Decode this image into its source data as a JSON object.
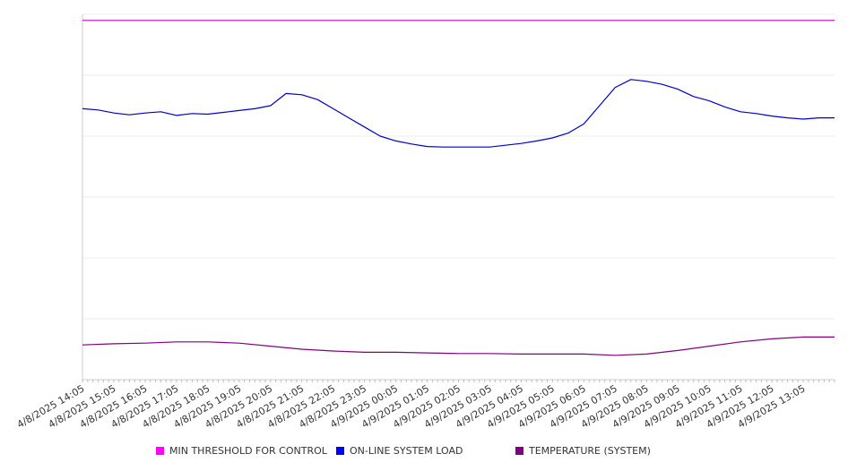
{
  "chart_data": {
    "type": "line",
    "title": "",
    "xlabel": "",
    "ylabel": "",
    "grid": true,
    "legend_position": "bottom",
    "x_categories": [
      "4/8/2025 14:05",
      "4/8/2025 15:05",
      "4/8/2025 16:05",
      "4/8/2025 17:05",
      "4/8/2025 18:05",
      "4/8/2025 19:05",
      "4/8/2025 20:05",
      "4/8/2025 21:05",
      "4/8/2025 22:05",
      "4/8/2025 23:05",
      "4/9/2025 00:05",
      "4/9/2025 01:05",
      "4/9/2025 02:05",
      "4/9/2025 03:05",
      "4/9/2025 04:05",
      "4/9/2025 05:05",
      "4/9/2025 06:05",
      "4/9/2025 07:05",
      "4/9/2025 08:05",
      "4/9/2025 09:05",
      "4/9/2025 10:05",
      "4/9/2025 11:05",
      "4/9/2025 12:05",
      "4/9/2025 13:05"
    ],
    "x_range": [
      0,
      24
    ],
    "y_range": [
      0,
      6
    ],
    "series": [
      {
        "name": "MIN THRESHOLD FOR CONTROL",
        "color": "#c000c0",
        "points": [
          [
            0,
            5.9
          ],
          [
            24,
            5.9
          ]
        ]
      },
      {
        "name": "ON-LINE SYSTEM LOAD",
        "color": "#0000cc",
        "points": [
          [
            0,
            4.45
          ],
          [
            0.5,
            4.43
          ],
          [
            1,
            4.38
          ],
          [
            1.5,
            4.35
          ],
          [
            2,
            4.38
          ],
          [
            2.5,
            4.4
          ],
          [
            3,
            4.34
          ],
          [
            3.5,
            4.37
          ],
          [
            4,
            4.36
          ],
          [
            4.5,
            4.39
          ],
          [
            5,
            4.42
          ],
          [
            5.5,
            4.45
          ],
          [
            6,
            4.5
          ],
          [
            6.5,
            4.7
          ],
          [
            7,
            4.68
          ],
          [
            7.5,
            4.6
          ],
          [
            8,
            4.45
          ],
          [
            8.5,
            4.3
          ],
          [
            9,
            4.15
          ],
          [
            9.5,
            4.0
          ],
          [
            10,
            3.92
          ],
          [
            10.5,
            3.87
          ],
          [
            11,
            3.83
          ],
          [
            11.5,
            3.82
          ],
          [
            12,
            3.82
          ],
          [
            12.5,
            3.82
          ],
          [
            13,
            3.82
          ],
          [
            13.5,
            3.85
          ],
          [
            14,
            3.88
          ],
          [
            14.5,
            3.92
          ],
          [
            15,
            3.97
          ],
          [
            15.5,
            4.05
          ],
          [
            16,
            4.2
          ],
          [
            16.5,
            4.5
          ],
          [
            17,
            4.8
          ],
          [
            17.5,
            4.93
          ],
          [
            18,
            4.9
          ],
          [
            18.5,
            4.85
          ],
          [
            19,
            4.77
          ],
          [
            19.5,
            4.65
          ],
          [
            20,
            4.58
          ],
          [
            20.5,
            4.48
          ],
          [
            21,
            4.4
          ],
          [
            21.5,
            4.37
          ],
          [
            22,
            4.33
          ],
          [
            22.5,
            4.3
          ],
          [
            23,
            4.28
          ],
          [
            23.5,
            4.3
          ],
          [
            24,
            4.3
          ]
        ]
      },
      {
        "name": "TEMPERATURE (SYSTEM)",
        "color": "#800080",
        "points": [
          [
            0,
            0.57
          ],
          [
            1,
            0.59
          ],
          [
            2,
            0.6
          ],
          [
            3,
            0.62
          ],
          [
            4,
            0.62
          ],
          [
            5,
            0.6
          ],
          [
            6,
            0.55
          ],
          [
            7,
            0.5
          ],
          [
            8,
            0.47
          ],
          [
            9,
            0.45
          ],
          [
            10,
            0.45
          ],
          [
            11,
            0.44
          ],
          [
            12,
            0.43
          ],
          [
            13,
            0.43
          ],
          [
            14,
            0.42
          ],
          [
            15,
            0.42
          ],
          [
            16,
            0.42
          ],
          [
            17,
            0.4
          ],
          [
            18,
            0.42
          ],
          [
            19,
            0.48
          ],
          [
            20,
            0.55
          ],
          [
            21,
            0.62
          ],
          [
            22,
            0.67
          ],
          [
            23,
            0.7
          ],
          [
            24,
            0.7
          ]
        ]
      }
    ]
  }
}
